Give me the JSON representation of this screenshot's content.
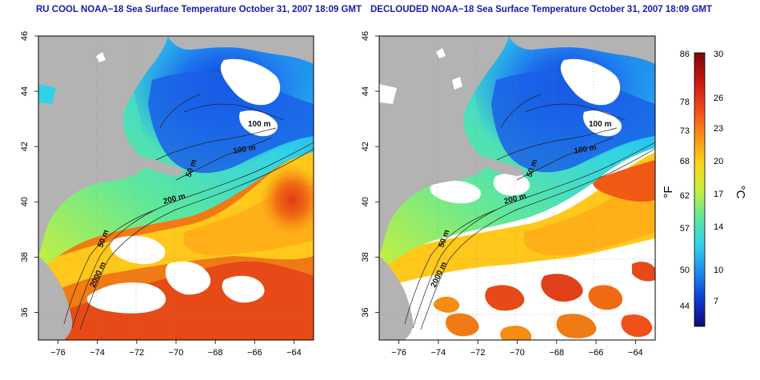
{
  "panels": [
    {
      "title": "RU COOL NOAA−18 Sea Surface Temperature October 31, 2007 18:09 GMT",
      "declouded": false
    },
    {
      "title": "DECLOUDED NOAA−18 Sea Surface Temperature October 31, 2007 18:09 GMT",
      "declouded": true
    }
  ],
  "axes": {
    "lon_ticks": [
      "−76",
      "−74",
      "−72",
      "−70",
      "−68",
      "−66",
      "−64"
    ],
    "lat_ticks": [
      "36",
      "38",
      "40",
      "42",
      "44",
      "46"
    ]
  },
  "contour_labels": {
    "left": [
      "100 m",
      "50 m",
      "100 m",
      "200 m",
      "50 m",
      "2000 m"
    ],
    "right": [
      "100 m",
      "50 m",
      "100 m",
      "200 m",
      "50 m",
      "2000 m"
    ]
  },
  "colorbar": {
    "fahrenheit_ticks": [
      "86",
      "78",
      "73",
      "68",
      "62",
      "57",
      "50",
      "44"
    ],
    "celsius_ticks": [
      "30",
      "26",
      "23",
      "20",
      "17",
      "14",
      "10",
      "7"
    ],
    "fahrenheit_unit": "°F",
    "celsius_unit": "°C",
    "colors": [
      "#0a0a78",
      "#0d3bd6",
      "#1e8cf0",
      "#31d2e8",
      "#5fe89a",
      "#c9f03a",
      "#ffd21a",
      "#ff8c14",
      "#f0461a",
      "#c8140f",
      "#7a0a0a"
    ]
  },
  "colors": {
    "land": "#b3b3b3",
    "cloud": "#ffffff",
    "title": "#1a1aa8"
  }
}
